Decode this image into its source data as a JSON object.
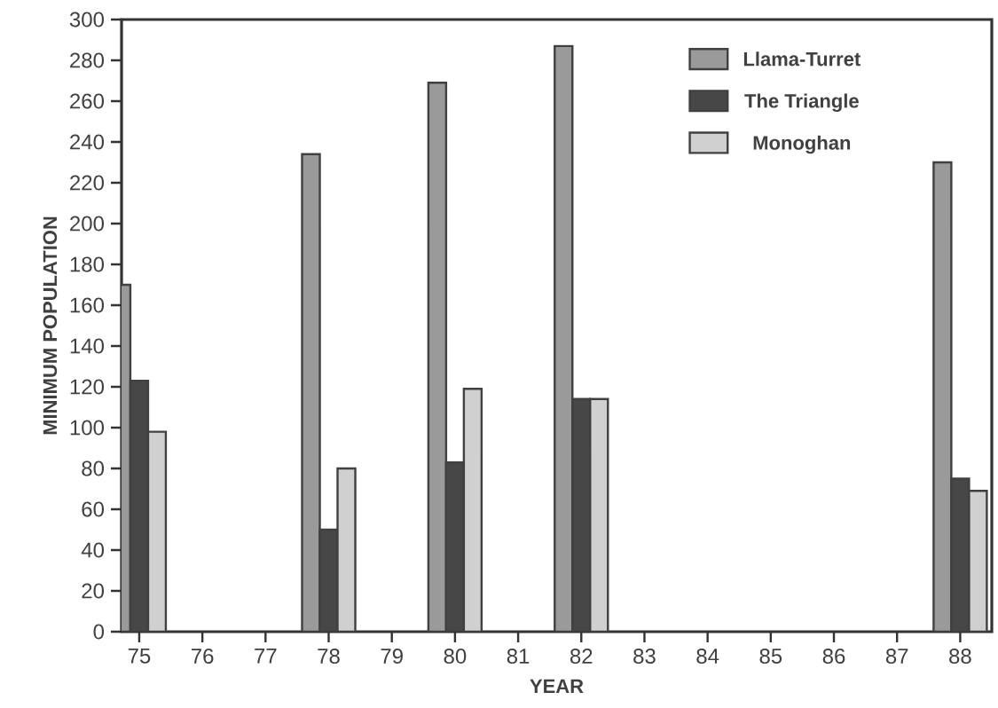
{
  "chart_data": {
    "type": "bar",
    "xlabel": "YEAR",
    "ylabel": "MINIMUM POPULATION",
    "categories": [
      "75",
      "76",
      "77",
      "78",
      "79",
      "80",
      "81",
      "82",
      "83",
      "84",
      "85",
      "86",
      "87",
      "88"
    ],
    "series": [
      {
        "name": "Llama-Turret",
        "color": "#9a9a9a",
        "values": [
          170,
          null,
          null,
          234,
          null,
          269,
          null,
          287,
          null,
          null,
          null,
          null,
          null,
          230
        ]
      },
      {
        "name": "The Triangle",
        "color": "#474747",
        "values": [
          123,
          null,
          null,
          50,
          null,
          83,
          null,
          114,
          null,
          null,
          null,
          null,
          null,
          75
        ]
      },
      {
        "name": "Monoghan",
        "color": "#d0d0d0",
        "values": [
          98,
          null,
          null,
          80,
          null,
          119,
          null,
          114,
          null,
          null,
          null,
          null,
          null,
          69
        ]
      }
    ],
    "ylim": [
      0,
      300
    ],
    "yticks": [
      0,
      20,
      40,
      60,
      80,
      100,
      120,
      140,
      160,
      180,
      200,
      220,
      240,
      260,
      280,
      300
    ],
    "legend": "top right",
    "grid": false
  }
}
